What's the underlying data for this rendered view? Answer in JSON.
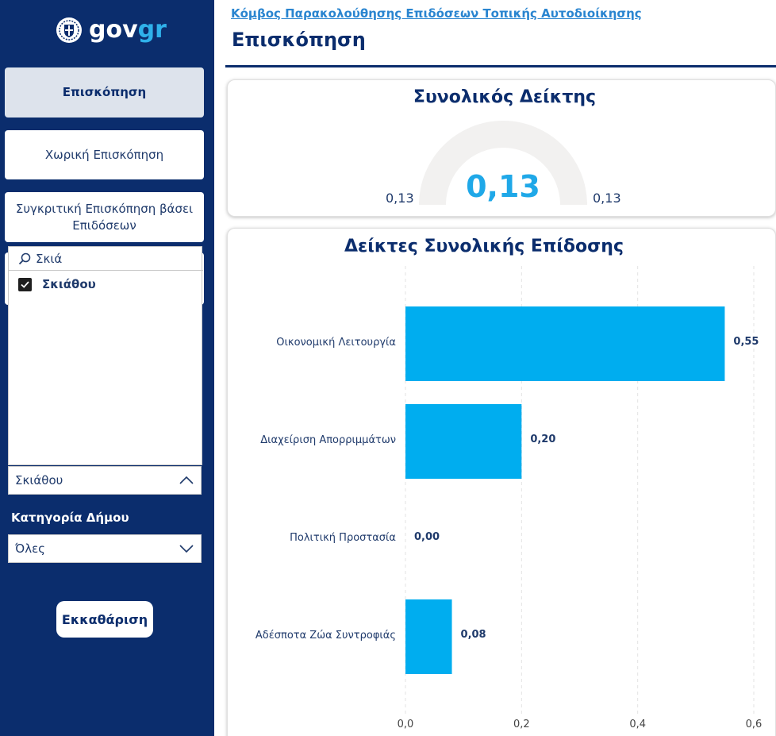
{
  "logo": {
    "prefix": "gov",
    "suffix": "gr"
  },
  "nav": {
    "overview": "Επισκόπηση",
    "spatial": "Χωρική Επισκόπηση",
    "comparative": "Συγκριτική Επισκόπηση βάσει Επιδόσεων"
  },
  "slicer": {
    "search_value": "Σκιά",
    "item_label": "Σκιάθου",
    "selected_value": "Σκιάθου"
  },
  "category_filter": {
    "label": "Κατηγορία Δήμου",
    "value": "Όλες"
  },
  "clear_label": "Εκκαθάριση",
  "header": {
    "breadcrumb": "Κόμβος Παρακολούθησης Επιδόσεων Τοπικής Αυτοδιοίκησης",
    "title": "Επισκόπηση"
  },
  "gauge": {
    "title": "Συνολικός Δείκτης",
    "value": 0.13,
    "value_label": "0,13",
    "min_label": "0,13",
    "max_label": "0,13",
    "track_color": "#f2f1f0",
    "value_color": "#1fa8e8"
  },
  "chart_data": {
    "type": "bar",
    "orientation": "horizontal",
    "title": "Δείκτες Συνολικής Επίδοσης",
    "categories": [
      "Οικονομική Λειτουργία",
      "Διαχείριση Απορριμμάτων",
      "Πολιτική Προστασία",
      "Αδέσποτα Ζώα Συντροφιάς"
    ],
    "values": [
      0.55,
      0.2,
      0.0,
      0.08
    ],
    "value_labels": [
      "0,55",
      "0,20",
      "0,00",
      "0,08"
    ],
    "xlim": [
      0,
      0.6
    ],
    "ticks": [
      0,
      0.2,
      0.4,
      0.6
    ],
    "tick_labels": [
      "0,0",
      "0,2",
      "0,4",
      "0,6"
    ],
    "grid": true,
    "bar_color": "#00adef"
  },
  "colors": {
    "sidebar": "#0b2d6d",
    "accent": "#2fb1ea",
    "title": "#0b2d6d"
  }
}
